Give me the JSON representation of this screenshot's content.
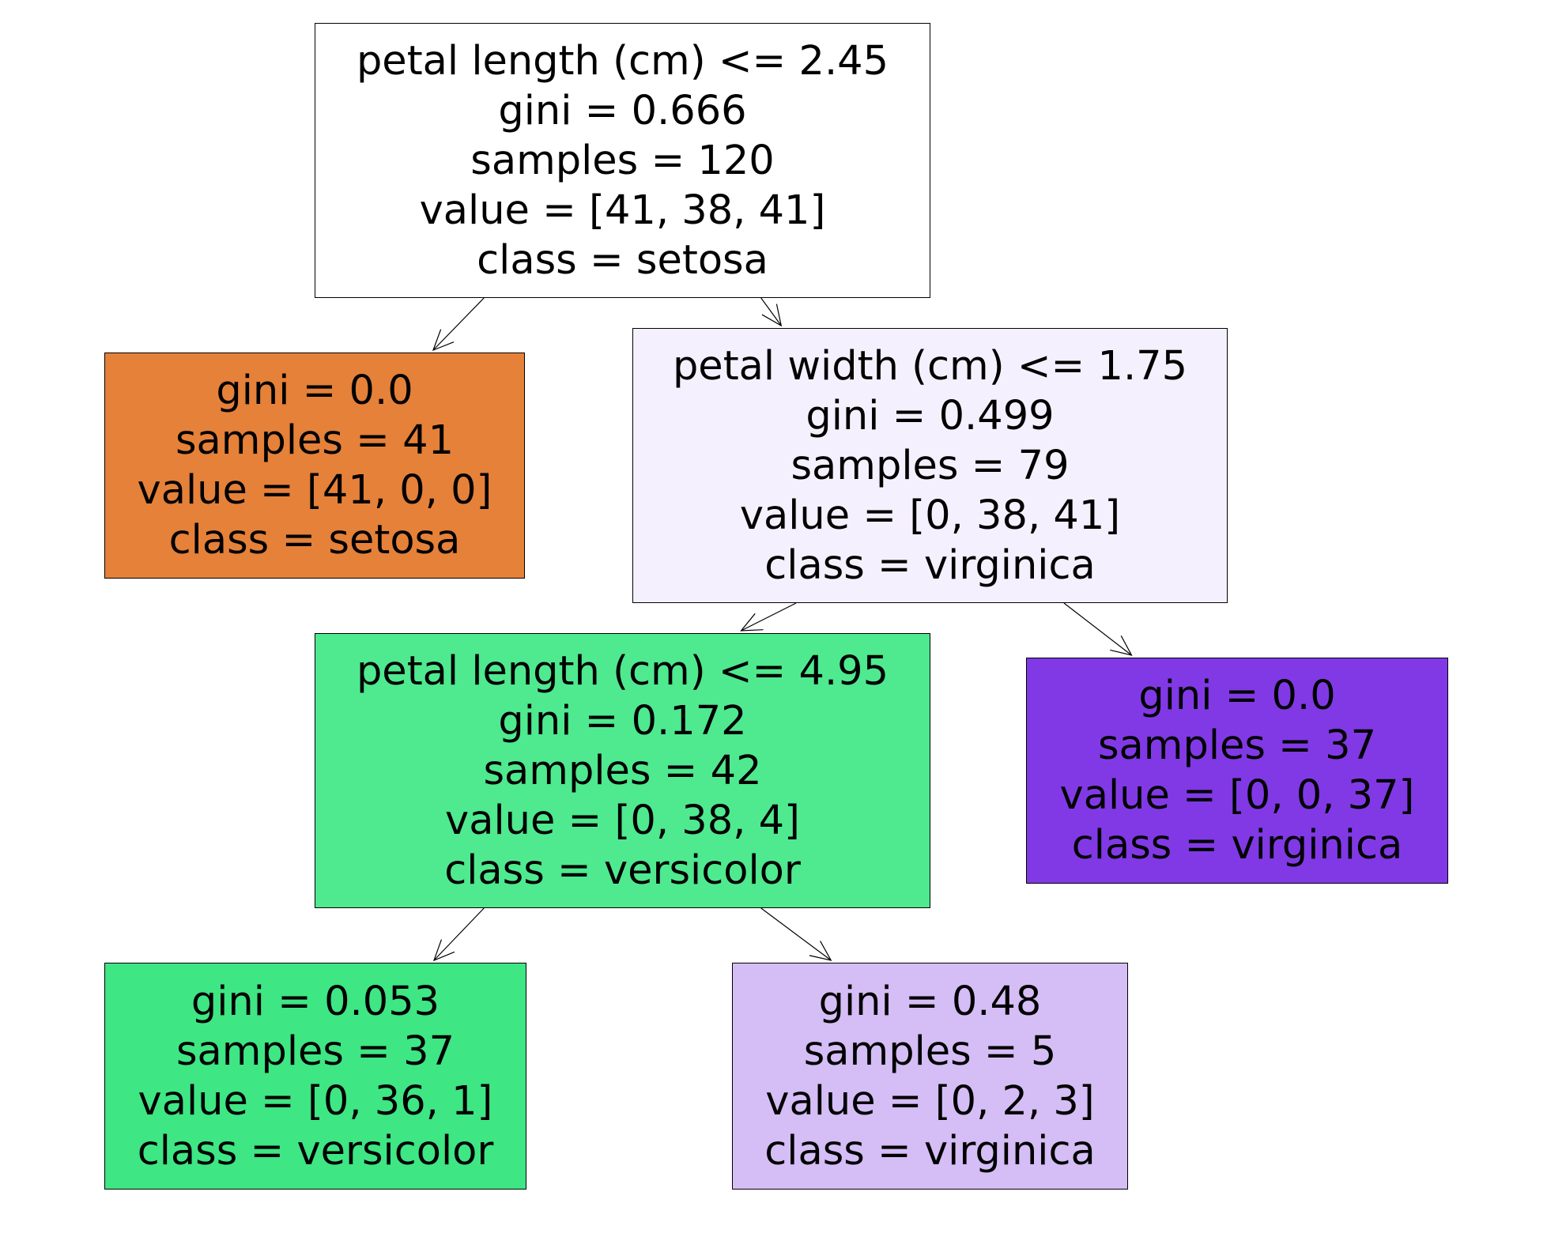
{
  "nodes": [
    {
      "id": "root",
      "lines": [
        "petal length (cm) <= 2.45",
        "gini = 0.666",
        "samples = 120",
        "value = [41, 38, 41]",
        "class = setosa"
      ],
      "fill": "#ffffff"
    },
    {
      "id": "leaf-setosa",
      "lines": [
        "gini = 0.0",
        "samples = 41",
        "value = [41, 0, 0]",
        "class = setosa"
      ],
      "fill": "#e58139"
    },
    {
      "id": "split-petal-width",
      "lines": [
        "petal width (cm) <= 1.75",
        "gini = 0.499",
        "samples = 79",
        "value = [0, 38, 41]",
        "class = virginica"
      ],
      "fill": "#f5f0fd"
    },
    {
      "id": "split-petal-length-2",
      "lines": [
        "petal length (cm) <= 4.95",
        "gini = 0.172",
        "samples = 42",
        "value = [0, 38, 4]",
        "class = versicolor"
      ],
      "fill": "#4fe98f"
    },
    {
      "id": "leaf-virginica-1",
      "lines": [
        "gini = 0.0",
        "samples = 37",
        "value = [0, 0, 37]",
        "class = virginica"
      ],
      "fill": "#8139e5"
    },
    {
      "id": "leaf-versicolor",
      "lines": [
        "gini = 0.053",
        "samples = 37",
        "value = [0, 36, 1]",
        "class = versicolor"
      ],
      "fill": "#3ee684"
    },
    {
      "id": "leaf-virginica-2",
      "lines": [
        "gini = 0.48",
        "samples = 5",
        "value = [0, 2, 3]",
        "class = virginica"
      ],
      "fill": "#d5bdf6"
    }
  ],
  "edges": [
    {
      "from": "root",
      "to": "leaf-setosa"
    },
    {
      "from": "root",
      "to": "split-petal-width"
    },
    {
      "from": "split-petal-width",
      "to": "split-petal-length-2"
    },
    {
      "from": "split-petal-width",
      "to": "leaf-virginica-1"
    },
    {
      "from": "split-petal-length-2",
      "to": "leaf-versicolor"
    },
    {
      "from": "split-petal-length-2",
      "to": "leaf-virginica-2"
    }
  ]
}
